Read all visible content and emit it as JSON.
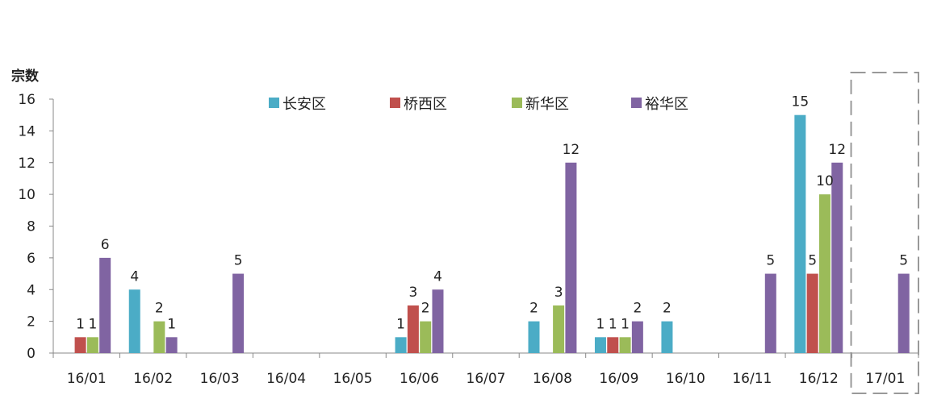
{
  "chart_data": {
    "type": "bar",
    "ylabel": "宗数",
    "ylim": [
      0,
      16
    ],
    "yticks": [
      "0",
      "2",
      "4",
      "6",
      "8",
      "10",
      "12",
      "14",
      "16"
    ],
    "categories": [
      "16/01",
      "16/02",
      "16/03",
      "16/04",
      "16/05",
      "16/06",
      "16/07",
      "16/08",
      "16/09",
      "16/10",
      "16/11",
      "16/12",
      "17/01"
    ],
    "highlighted_category": "17/01",
    "legend_position": "top",
    "grid": false,
    "series": [
      {
        "name": "长安区",
        "color": "#4BACC6",
        "values": [
          0,
          4,
          0,
          0,
          0,
          1,
          0,
          2,
          1,
          2,
          0,
          15,
          0
        ],
        "labels": [
          "",
          "4",
          "",
          "",
          "",
          "1",
          "",
          "2",
          "1",
          "2",
          "",
          "15",
          ""
        ]
      },
      {
        "name": "桥西区",
        "color": "#C0504D",
        "values": [
          1,
          0,
          0,
          0,
          0,
          3,
          0,
          0,
          1,
          0,
          0,
          5,
          0
        ],
        "labels": [
          "1",
          "",
          "",
          "",
          "",
          "3",
          "",
          "",
          "1",
          "",
          "",
          "5",
          ""
        ]
      },
      {
        "name": "新华区",
        "color": "#9BBB59",
        "values": [
          1,
          2,
          0,
          0,
          0,
          2,
          0,
          3,
          1,
          0,
          0,
          10,
          0
        ],
        "labels": [
          "1",
          "2",
          "",
          "",
          "",
          "2",
          "",
          "3",
          "1",
          "",
          "",
          "10",
          ""
        ]
      },
      {
        "name": "裕华区",
        "color": "#8064A2",
        "values": [
          6,
          1,
          5,
          0,
          0,
          4,
          0,
          12,
          2,
          0,
          5,
          12,
          5
        ],
        "labels": [
          "6",
          "1",
          "5",
          "",
          "",
          "4",
          "",
          "12",
          "2",
          "",
          "5",
          "12",
          "5"
        ]
      }
    ]
  }
}
